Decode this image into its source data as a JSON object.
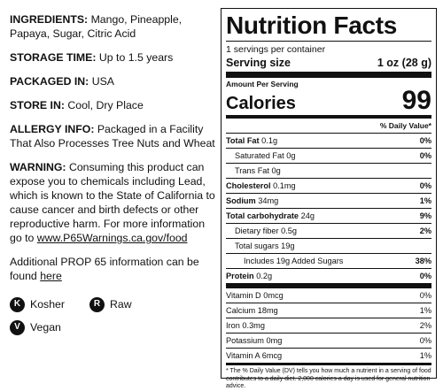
{
  "left": {
    "ingredients": {
      "label": "INGREDIENTS:",
      "value": "Mango, Pineapple, Papaya, Sugar, Citric Acid"
    },
    "storage": {
      "label": "STORAGE TIME:",
      "value": "Up to 1.5 years"
    },
    "packaged": {
      "label": "PACKAGED IN:",
      "value": "USA"
    },
    "store": {
      "label": "STORE IN:",
      "value": "Cool, Dry Place"
    },
    "allergy": {
      "label": "ALLERGY INFO:",
      "value": "Packaged in a Facility That Also Processes Tree Nuts and Wheat"
    },
    "warning": {
      "label": "WARNING:",
      "value": "Consuming this product can expose you to chemicals including Lead, which is known to the State of California to cause cancer and birth defects or other reproductive harm. For more information go to",
      "link": "www.P65Warnings.ca.gov/food"
    },
    "prop65": {
      "text": "Additional PROP 65 information can be found",
      "link": "here"
    },
    "badges": [
      {
        "letter": "K",
        "label": "Kosher",
        "icon": "kosher-icon"
      },
      {
        "letter": "R",
        "label": "Raw",
        "icon": "raw-icon"
      },
      {
        "letter": "V",
        "label": "Vegan",
        "icon": "vegan-icon"
      }
    ]
  },
  "panel": {
    "title": "Nutrition Facts",
    "servings": "1 servings per container",
    "serving_size_label": "Serving size",
    "serving_size_value": "1 oz (28 g)",
    "amount_per_serving": "Amount Per Serving",
    "calories_label": "Calories",
    "calories_value": "99",
    "dv_header": "% Daily Value*",
    "rows": {
      "total_fat": {
        "label": "Total Fat",
        "amount": "0.1g",
        "dv": "0%"
      },
      "sat_fat": {
        "label": "Saturated Fat",
        "amount": "0g",
        "dv": "0%"
      },
      "trans_fat": {
        "label": "Trans Fat",
        "amount": "0g"
      },
      "cholesterol": {
        "label": "Cholesterol",
        "amount": "0.1mg",
        "dv": "0%"
      },
      "sodium": {
        "label": "Sodium",
        "amount": "34mg",
        "dv": "1%"
      },
      "carbs": {
        "label": "Total carbohydrate",
        "amount": "24g",
        "dv": "9%"
      },
      "fiber": {
        "label": "Dietary fiber",
        "amount": "0.5g",
        "dv": "2%"
      },
      "sugars": {
        "label": "Total sugars",
        "amount": "19g"
      },
      "added_sugars": {
        "label": "Includes 19g Added Sugars",
        "dv": "38%"
      },
      "protein": {
        "label": "Protein",
        "amount": "0.2g",
        "dv": "0%"
      },
      "vit_d": {
        "label": "Vitamin D",
        "amount": "0mcg",
        "dv": "0%"
      },
      "calcium": {
        "label": "Calcium",
        "amount": "18mg",
        "dv": "1%"
      },
      "iron": {
        "label": "Iron",
        "amount": "0.3mg",
        "dv": "2%"
      },
      "potassium": {
        "label": "Potassium",
        "amount": "0mg",
        "dv": "0%"
      },
      "vit_a": {
        "label": "Vitamin A",
        "amount": "6mcg",
        "dv": "1%"
      }
    },
    "footnote": "* The % Daily Value (DV) tells you how much a nutrient in a serving of food contributes to a daily diet. 2,000 calories a day is used for general nutrition advice."
  }
}
